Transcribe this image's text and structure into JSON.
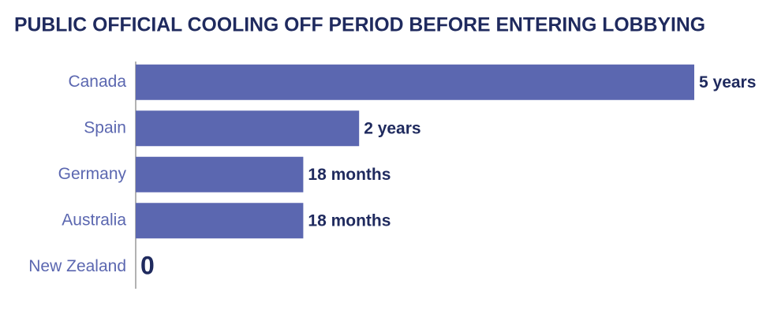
{
  "chart_data": {
    "type": "bar",
    "orientation": "horizontal",
    "title": "PUBLIC OFFICIAL COOLING OFF PERIOD BEFORE ENTERING LOBBYING",
    "categories": [
      "Canada",
      "Spain",
      "Germany",
      "Australia",
      "New Zealand"
    ],
    "values": [
      5,
      2,
      1.5,
      1.5,
      0
    ],
    "value_labels": [
      "5 years",
      "2 years",
      "18 months",
      "18 months",
      "0"
    ],
    "color": "#5b67b0"
  }
}
